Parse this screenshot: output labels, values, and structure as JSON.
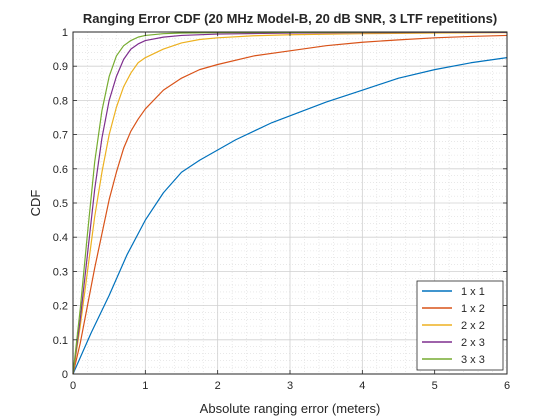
{
  "chart_data": {
    "type": "line",
    "title": "Ranging Error CDF (20 MHz Model-B, 20 dB SNR, 3 LTF repetitions)",
    "xlabel": "Absolute ranging error (meters)",
    "ylabel": "CDF",
    "xlim": [
      0,
      6
    ],
    "ylim": [
      0,
      1
    ],
    "xticks": [
      0,
      1,
      2,
      3,
      4,
      5,
      6
    ],
    "yticks": [
      0,
      0.1,
      0.2,
      0.3,
      0.4,
      0.5,
      0.6,
      0.7,
      0.8,
      0.9,
      1
    ],
    "grid": true,
    "minor_grid": true,
    "legend_position": "bottom-right",
    "series": [
      {
        "name": "1 x 1",
        "color": "#0072BD",
        "points": [
          [
            0,
            0
          ],
          [
            0.25,
            0.12
          ],
          [
            0.5,
            0.23
          ],
          [
            0.75,
            0.35
          ],
          [
            1.0,
            0.45
          ],
          [
            1.25,
            0.53
          ],
          [
            1.5,
            0.59
          ],
          [
            1.75,
            0.625
          ],
          [
            2.0,
            0.655
          ],
          [
            2.25,
            0.685
          ],
          [
            2.5,
            0.71
          ],
          [
            2.75,
            0.735
          ],
          [
            3.0,
            0.755
          ],
          [
            3.5,
            0.795
          ],
          [
            4.0,
            0.83
          ],
          [
            4.5,
            0.865
          ],
          [
            5.0,
            0.89
          ],
          [
            5.5,
            0.91
          ],
          [
            6.0,
            0.925
          ]
        ]
      },
      {
        "name": "1 x 2",
        "color": "#D95319",
        "points": [
          [
            0,
            0
          ],
          [
            0.1,
            0.09
          ],
          [
            0.2,
            0.2
          ],
          [
            0.3,
            0.31
          ],
          [
            0.4,
            0.41
          ],
          [
            0.5,
            0.51
          ],
          [
            0.6,
            0.59
          ],
          [
            0.7,
            0.66
          ],
          [
            0.8,
            0.71
          ],
          [
            0.9,
            0.745
          ],
          [
            1.0,
            0.775
          ],
          [
            1.25,
            0.83
          ],
          [
            1.5,
            0.865
          ],
          [
            1.75,
            0.89
          ],
          [
            2.0,
            0.905
          ],
          [
            2.5,
            0.93
          ],
          [
            3.0,
            0.945
          ],
          [
            3.5,
            0.96
          ],
          [
            4.0,
            0.97
          ],
          [
            4.5,
            0.977
          ],
          [
            5.0,
            0.983
          ],
          [
            5.5,
            0.987
          ],
          [
            6.0,
            0.99
          ]
        ]
      },
      {
        "name": "2 x 2",
        "color": "#EDB120",
        "points": [
          [
            0,
            0
          ],
          [
            0.1,
            0.14
          ],
          [
            0.2,
            0.3
          ],
          [
            0.3,
            0.46
          ],
          [
            0.4,
            0.59
          ],
          [
            0.5,
            0.7
          ],
          [
            0.6,
            0.78
          ],
          [
            0.7,
            0.84
          ],
          [
            0.8,
            0.88
          ],
          [
            0.9,
            0.91
          ],
          [
            1.0,
            0.925
          ],
          [
            1.25,
            0.95
          ],
          [
            1.5,
            0.968
          ],
          [
            1.75,
            0.978
          ],
          [
            2.0,
            0.983
          ],
          [
            2.5,
            0.989
          ],
          [
            3.0,
            0.992
          ],
          [
            4.0,
            0.995
          ],
          [
            5.0,
            0.997
          ],
          [
            6.0,
            0.998
          ]
        ]
      },
      {
        "name": "2 x 3",
        "color": "#7E2F8E",
        "points": [
          [
            0,
            0
          ],
          [
            0.1,
            0.16
          ],
          [
            0.2,
            0.35
          ],
          [
            0.3,
            0.54
          ],
          [
            0.4,
            0.69
          ],
          [
            0.5,
            0.8
          ],
          [
            0.6,
            0.87
          ],
          [
            0.7,
            0.92
          ],
          [
            0.8,
            0.95
          ],
          [
            0.9,
            0.965
          ],
          [
            1.0,
            0.975
          ],
          [
            1.25,
            0.985
          ],
          [
            1.5,
            0.99
          ],
          [
            2.0,
            0.994
          ],
          [
            3.0,
            0.997
          ],
          [
            4.0,
            0.998
          ],
          [
            5.0,
            0.999
          ],
          [
            6.0,
            0.999
          ]
        ]
      },
      {
        "name": "3 x 3",
        "color": "#77AC30",
        "points": [
          [
            0,
            0
          ],
          [
            0.1,
            0.19
          ],
          [
            0.2,
            0.41
          ],
          [
            0.3,
            0.62
          ],
          [
            0.4,
            0.77
          ],
          [
            0.5,
            0.87
          ],
          [
            0.6,
            0.93
          ],
          [
            0.7,
            0.96
          ],
          [
            0.8,
            0.975
          ],
          [
            0.9,
            0.985
          ],
          [
            1.0,
            0.99
          ],
          [
            1.25,
            0.995
          ],
          [
            1.5,
            0.997
          ],
          [
            2.0,
            0.998
          ],
          [
            3.0,
            0.999
          ],
          [
            6.0,
            1.0
          ]
        ]
      }
    ]
  }
}
